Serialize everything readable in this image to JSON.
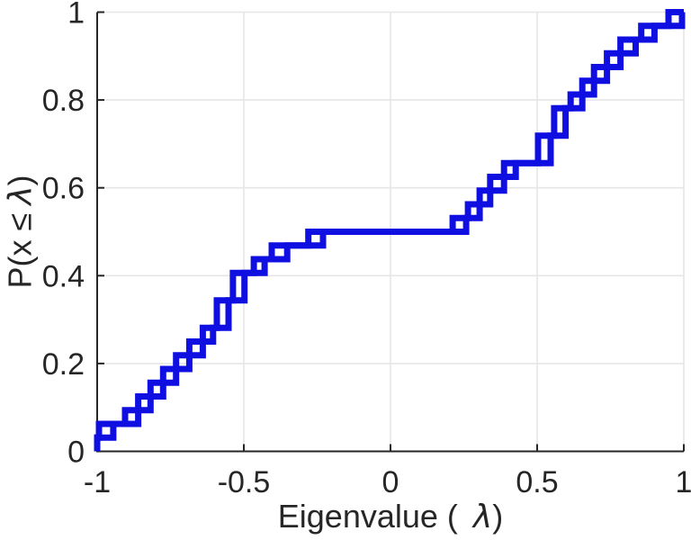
{
  "figure": {
    "background": "#ffffff"
  },
  "chart_data": {
    "type": "step",
    "subtype": "empirical-cdf",
    "title": "",
    "xlabel": "Eigenvalue ( λ)",
    "ylabel": "P(x ≤ λ)",
    "xlabel_parts": {
      "prefix": "Eigenvalue (",
      "lambda": "λ",
      "suffix": ")"
    },
    "ylabel_parts": {
      "prefix": "P(x ≤",
      "lambda": "λ",
      "suffix": ")"
    },
    "xlim": [
      -1,
      1
    ],
    "ylim": [
      0,
      1
    ],
    "x_ticks": [
      {
        "v": -1,
        "label": "-1"
      },
      {
        "v": -0.5,
        "label": "-0.5"
      },
      {
        "v": 0,
        "label": "0"
      },
      {
        "v": 0.5,
        "label": "0.5"
      },
      {
        "v": 1,
        "label": "1"
      }
    ],
    "y_ticks": [
      {
        "v": 0,
        "label": "0"
      },
      {
        "v": 0.2,
        "label": "0.2"
      },
      {
        "v": 0.4,
        "label": "0.4"
      },
      {
        "v": 0.6,
        "label": "0.6"
      },
      {
        "v": 0.8,
        "label": "0.8"
      },
      {
        "v": 1,
        "label": "1"
      }
    ],
    "grid": true,
    "legend_position": "none",
    "n_points_per_series": 32,
    "line_color": "#0e0fe0",
    "axis_color": "#262626",
    "tick_label_color": "#262626",
    "grid_color": "#e6e6e6",
    "line_width": 7,
    "series": [
      {
        "name": "ecdf-curve-1",
        "x": [
          -1.0,
          -0.994,
          -0.905,
          -0.86,
          -0.818,
          -0.775,
          -0.731,
          -0.686,
          -0.64,
          -0.592,
          -0.592,
          -0.537,
          -0.537,
          -0.466,
          -0.405,
          -0.28,
          0.212,
          0.264,
          0.304,
          0.34,
          0.387,
          0.503,
          0.503,
          0.558,
          0.558,
          0.614,
          0.654,
          0.694,
          0.738,
          0.784,
          0.855,
          0.948
        ]
      },
      {
        "name": "ecdf-curve-2",
        "x": [
          -1.0,
          -0.945,
          -0.86,
          -0.818,
          -0.775,
          -0.731,
          -0.686,
          -0.64,
          -0.605,
          -0.552,
          -0.552,
          -0.498,
          -0.498,
          -0.429,
          -0.352,
          -0.23,
          0.258,
          0.304,
          0.34,
          0.387,
          0.427,
          0.546,
          0.546,
          0.597,
          0.597,
          0.654,
          0.694,
          0.738,
          0.784,
          0.836,
          0.9,
          0.994
        ]
      }
    ]
  }
}
